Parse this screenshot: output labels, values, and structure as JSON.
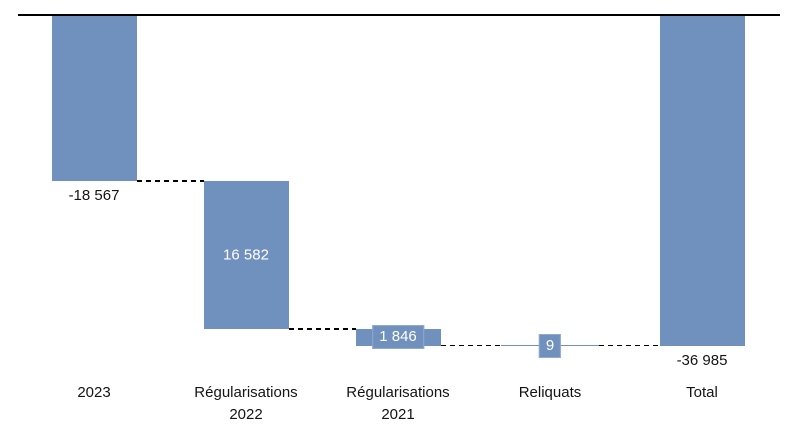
{
  "chart_data": {
    "type": "bar",
    "subtype": "waterfall",
    "title": "",
    "background_color": "#ffffff",
    "bar_color": "#7090be",
    "axis_line_color": "#000000",
    "connector_color": "#000000",
    "connector_style": "dashed",
    "grid": false,
    "legend": false,
    "y_axis_visible": false,
    "baseline_value": 0,
    "ylim": [
      -37000,
      0
    ],
    "categories": [
      "2023",
      "Régularisations\n2022",
      "Régularisations\n2021",
      "Reliquats",
      "Total"
    ],
    "bars": [
      {
        "name": "2023",
        "value": -18567,
        "label": "-18 567",
        "label_style": "below-black",
        "label_color": "#141414",
        "cum_start": 0,
        "cum_end": -18567
      },
      {
        "name": "Régularisations 2022",
        "value": -16582,
        "label": "16 582",
        "label_style": "inside-white",
        "label_color": "#ffffff",
        "cum_start": -18567,
        "cum_end": -35149
      },
      {
        "name": "Régularisations 2021",
        "value": -1846,
        "label": "1 846",
        "label_style": "boxed-white",
        "label_color": "#ffffff",
        "cum_start": -35149,
        "cum_end": -36995
      },
      {
        "name": "Reliquats",
        "value": 9,
        "label": "9",
        "label_style": "boxed-white",
        "label_color": "#ffffff",
        "cum_start": -36995,
        "cum_end": -36986
      },
      {
        "name": "Total",
        "value": -36985,
        "label": "-36 985",
        "label_style": "below-black",
        "label_color": "#141414",
        "cum_start": 0,
        "cum_end": -36985
      }
    ]
  }
}
